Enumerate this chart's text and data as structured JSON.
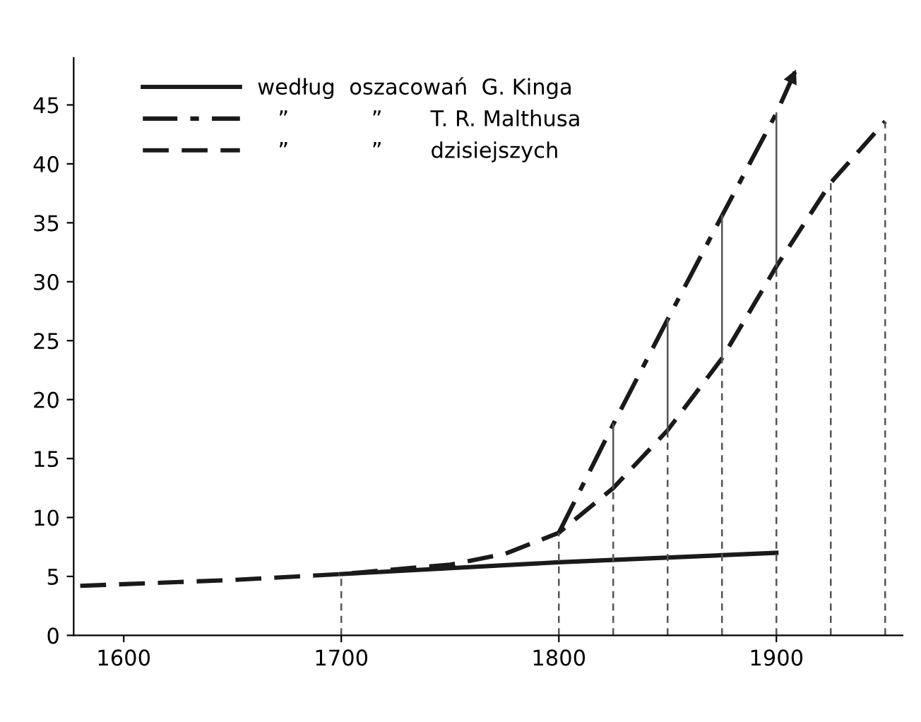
{
  "chart_data": {
    "type": "line",
    "xlim": [
      1577,
      1958
    ],
    "ylim": [
      0,
      49
    ],
    "xticks": [
      1600,
      1700,
      1800,
      1900
    ],
    "yticks": [
      0,
      5,
      10,
      15,
      20,
      25,
      30,
      35,
      40,
      45
    ],
    "legend": "top left",
    "series": [
      {
        "name": "według  oszacowań  G. Kinga",
        "color": "#1a1a1a",
        "line_style": "solid",
        "x": [
          1700,
          1800,
          1900
        ],
        "values": [
          5.2,
          6.2,
          7.0
        ]
      },
      {
        "name": "   ”            ”       T. R. Malthusa",
        "color": "#1a1a1a",
        "line_style": "dashdot",
        "x": [
          1800,
          1825,
          1850,
          1875,
          1900,
          1909
        ],
        "values": [
          8.7,
          17.9,
          26.8,
          35.6,
          44.3,
          48
        ]
      },
      {
        "name": "   ”            ”       dzisiejszych",
        "color": "#1a1a1a",
        "line_style": "dashed",
        "x": [
          1580,
          1650,
          1700,
          1750,
          1775,
          1800,
          1825,
          1850,
          1875,
          1900,
          1925,
          1950
        ],
        "values": [
          4.2,
          4.7,
          5.2,
          6.0,
          6.9,
          8.7,
          12.5,
          17.4,
          23.5,
          31.3,
          38.4,
          43.6
        ]
      },
      {
        "color": "#555555",
        "line_style": "dotted",
        "x": [
          1700,
          1700
        ],
        "values": [
          0,
          5.2
        ]
      },
      {
        "color": "#555555",
        "line_style": "dotted",
        "x": [
          1800,
          1800
        ],
        "values": [
          0,
          8.7
        ]
      },
      {
        "color": "#555555",
        "line_style": "dotted",
        "x": [
          1825,
          1825
        ],
        "values": [
          0,
          12.5
        ]
      },
      {
        "color": "#555555",
        "line_style": "dotted",
        "x": [
          1850,
          1850
        ],
        "values": [
          0,
          17.4
        ]
      },
      {
        "color": "#555555",
        "line_style": "dotted",
        "x": [
          1875,
          1875
        ],
        "values": [
          0,
          23.5
        ]
      },
      {
        "color": "#555555",
        "line_style": "dotted",
        "x": [
          1900,
          1900
        ],
        "values": [
          0,
          31.3
        ]
      },
      {
        "color": "#555555",
        "line_style": "dotted",
        "x": [
          1925,
          1925
        ],
        "values": [
          0,
          38.4
        ]
      },
      {
        "color": "#555555",
        "line_style": "dotted",
        "x": [
          1950,
          1950
        ],
        "values": [
          0,
          43.6
        ]
      },
      {
        "color": "#555555",
        "line_style": "solid",
        "x": [
          1825,
          1825
        ],
        "values": [
          12.5,
          17.9
        ]
      },
      {
        "color": "#555555",
        "line_style": "solid",
        "x": [
          1850,
          1850
        ],
        "values": [
          17.4,
          26.8
        ]
      },
      {
        "color": "#555555",
        "line_style": "solid",
        "x": [
          1875,
          1875
        ],
        "values": [
          23.5,
          35.6
        ]
      },
      {
        "color": "#555555",
        "line_style": "solid",
        "x": [
          1900,
          1900
        ],
        "values": [
          31.3,
          44.3
        ]
      }
    ]
  }
}
